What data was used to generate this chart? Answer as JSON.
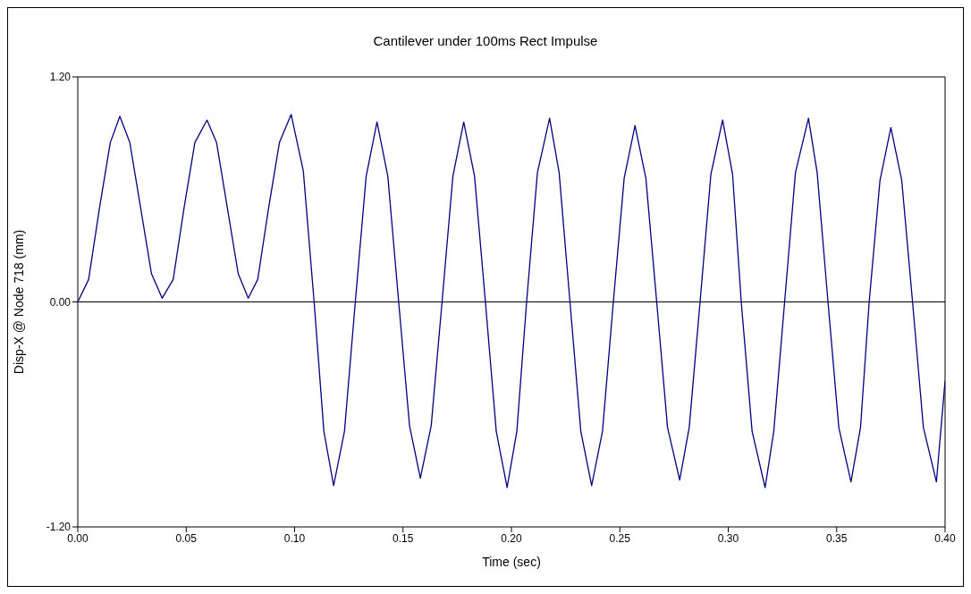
{
  "chart_data": {
    "type": "line",
    "title": "Cantilever under 100ms Rect Impulse",
    "xlabel": "Time (sec)",
    "ylabel": "Disp-X @ Node 718 (mm)",
    "xlim": [
      0,
      0.4
    ],
    "ylim": [
      -1.2,
      1.2
    ],
    "xticks": [
      {
        "value": 0,
        "label": "0.00"
      },
      {
        "value": 0.05,
        "label": "0.05"
      },
      {
        "value": 0.1,
        "label": "0.10"
      },
      {
        "value": 0.15,
        "label": "0.15"
      },
      {
        "value": 0.2,
        "label": "0.20"
      },
      {
        "value": 0.25,
        "label": "0.25"
      },
      {
        "value": 0.3,
        "label": "0.30"
      },
      {
        "value": 0.35,
        "label": "0.35"
      },
      {
        "value": 0.4,
        "label": "0.40"
      }
    ],
    "yticks": [
      {
        "value": -1.2,
        "label": "-1.20"
      },
      {
        "value": 0,
        "label": "0.00"
      },
      {
        "value": 1.2,
        "label": "1.20"
      }
    ],
    "grid": false,
    "legend": false,
    "marker": "none",
    "line_style": "solid",
    "ref_lines": [
      {
        "axis": "y",
        "value": 0,
        "color": "#000000"
      }
    ],
    "x": [
      0,
      0.005,
      0.01,
      0.015,
      0.0194,
      0.024,
      0.029,
      0.034,
      0.0389,
      0.044,
      0.049,
      0.054,
      0.0596,
      0.064,
      0.069,
      0.074,
      0.0786,
      0.083,
      0.088,
      0.093,
      0.0984,
      0.104,
      0.109,
      0.1135,
      0.118,
      0.123,
      0.128,
      0.133,
      0.138,
      0.143,
      0.148,
      0.153,
      0.158,
      0.163,
      0.168,
      0.173,
      0.178,
      0.183,
      0.188,
      0.193,
      0.198,
      0.2025,
      0.207,
      0.212,
      0.2176,
      0.222,
      0.227,
      0.232,
      0.237,
      0.242,
      0.247,
      0.252,
      0.257,
      0.262,
      0.267,
      0.272,
      0.2776,
      0.282,
      0.287,
      0.292,
      0.2974,
      0.302,
      0.306,
      0.311,
      0.317,
      0.321,
      0.326,
      0.331,
      0.337,
      0.341,
      0.346,
      0.351,
      0.3566,
      0.361,
      0.365,
      0.37,
      0.375,
      0.38,
      0.385,
      0.39,
      0.396,
      0.4
    ],
    "series": [
      {
        "color": "#000080",
        "values": [
          0,
          0.12,
          0.5,
          0.85,
          0.99,
          0.85,
          0.5,
          0.15,
          0.02,
          0.12,
          0.5,
          0.85,
          0.97,
          0.85,
          0.5,
          0.15,
          0.02,
          0.12,
          0.5,
          0.85,
          1.0,
          0.7,
          0,
          -0.69,
          -0.98,
          -0.69,
          0,
          0.67,
          0.96,
          0.67,
          0,
          -0.66,
          -0.94,
          -0.66,
          0,
          0.67,
          0.96,
          0.67,
          0,
          -0.69,
          -0.99,
          -0.69,
          0,
          0.69,
          0.98,
          0.69,
          0,
          -0.69,
          -0.98,
          -0.69,
          0,
          0.66,
          0.94,
          0.66,
          0,
          -0.67,
          -0.95,
          -0.67,
          0,
          0.68,
          0.97,
          0.68,
          0,
          -0.69,
          -0.99,
          -0.69,
          0,
          0.69,
          0.98,
          0.69,
          0,
          -0.67,
          -0.96,
          -0.67,
          0,
          0.65,
          0.93,
          0.65,
          0,
          -0.67,
          -0.96,
          -0.42
        ]
      }
    ]
  }
}
